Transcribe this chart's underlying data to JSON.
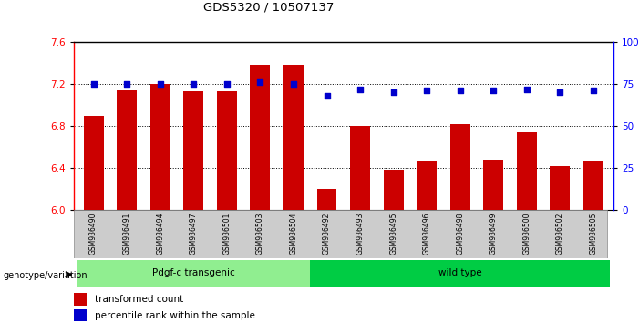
{
  "title": "GDS5320 / 10507137",
  "samples": [
    "GSM936490",
    "GSM936491",
    "GSM936494",
    "GSM936497",
    "GSM936501",
    "GSM936503",
    "GSM936504",
    "GSM936492",
    "GSM936493",
    "GSM936495",
    "GSM936496",
    "GSM936498",
    "GSM936499",
    "GSM936500",
    "GSM936502",
    "GSM936505"
  ],
  "bar_values": [
    6.9,
    7.14,
    7.2,
    7.13,
    7.13,
    7.38,
    7.38,
    6.2,
    6.8,
    6.38,
    6.47,
    6.82,
    6.48,
    6.74,
    6.42,
    6.47
  ],
  "dot_values": [
    75,
    75,
    75,
    75,
    75,
    76,
    75,
    68,
    72,
    70,
    71,
    71,
    71,
    72,
    70,
    71
  ],
  "transgenic_count": 7,
  "wildtype_count": 9,
  "ylim_left": [
    6.0,
    7.6
  ],
  "ylim_right": [
    0,
    100
  ],
  "yticks_left": [
    6.0,
    6.4,
    6.8,
    7.2,
    7.6
  ],
  "yticks_right": [
    0,
    25,
    50,
    75,
    100
  ],
  "bar_color": "#CC0000",
  "dot_color": "#0000CC",
  "transgenic_color": "#90EE90",
  "wildtype_color": "#00CC44",
  "group_label": "genotype/variation",
  "transgenic_label": "Pdgf-c transgenic",
  "wildtype_label": "wild type",
  "legend_bar": "transformed count",
  "legend_dot": "percentile rank within the sample",
  "bg_color": "#FFFFFF"
}
